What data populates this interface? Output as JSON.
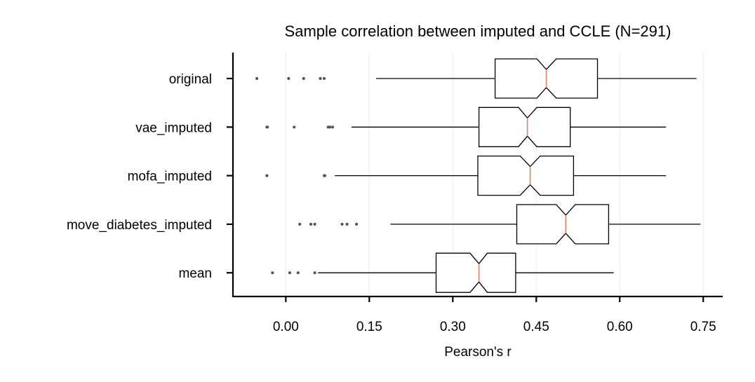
{
  "chart_data": {
    "type": "box",
    "title": "Sample correlation between imputed and CCLE (N=291)",
    "xlabel": "Pearson's r",
    "ylabel": "",
    "xlim": [
      -0.095,
      0.785
    ],
    "xticks": [
      0.0,
      0.15,
      0.3,
      0.45,
      0.6,
      0.75
    ],
    "xtick_labels": [
      "0.00",
      "0.15",
      "0.30",
      "0.45",
      "0.60",
      "0.75"
    ],
    "grid": true,
    "notched": true,
    "median_color": "#e8825c",
    "categories": [
      "original",
      "vae_imputed",
      "mofa_imputed",
      "move_diabetes_imputed",
      "mean"
    ],
    "boxes": [
      {
        "name": "original",
        "whisker_low": 0.162,
        "q1": 0.376,
        "notch_low": 0.451,
        "median": 0.468,
        "notch_high": 0.486,
        "q3": 0.56,
        "whisker_high": 0.738,
        "outliers": [
          -0.052,
          0.005,
          0.032,
          0.062,
          0.069
        ]
      },
      {
        "name": "vae_imputed",
        "whisker_low": 0.118,
        "q1": 0.347,
        "notch_low": 0.418,
        "median": 0.434,
        "notch_high": 0.451,
        "q3": 0.511,
        "whisker_high": 0.683,
        "outliers": [
          -0.034,
          -0.033,
          0.015,
          0.076,
          0.079,
          0.084
        ]
      },
      {
        "name": "mofa_imputed",
        "whisker_low": 0.088,
        "q1": 0.345,
        "notch_low": 0.421,
        "median": 0.439,
        "notch_high": 0.457,
        "q3": 0.517,
        "whisker_high": 0.683,
        "outliers": [
          -0.034,
          0.069,
          0.07
        ]
      },
      {
        "name": "move_diabetes_imputed",
        "whisker_low": 0.188,
        "q1": 0.415,
        "notch_low": 0.486,
        "median": 0.503,
        "notch_high": 0.52,
        "q3": 0.58,
        "whisker_high": 0.745,
        "outliers": [
          0.025,
          0.045,
          0.052,
          0.101,
          0.11,
          0.127
        ]
      },
      {
        "name": "mean",
        "whisker_low": 0.058,
        "q1": 0.27,
        "notch_low": 0.331,
        "median": 0.347,
        "notch_high": 0.362,
        "q3": 0.413,
        "whisker_high": 0.589,
        "outliers": [
          -0.024,
          0.007,
          0.022,
          0.052
        ]
      }
    ]
  }
}
